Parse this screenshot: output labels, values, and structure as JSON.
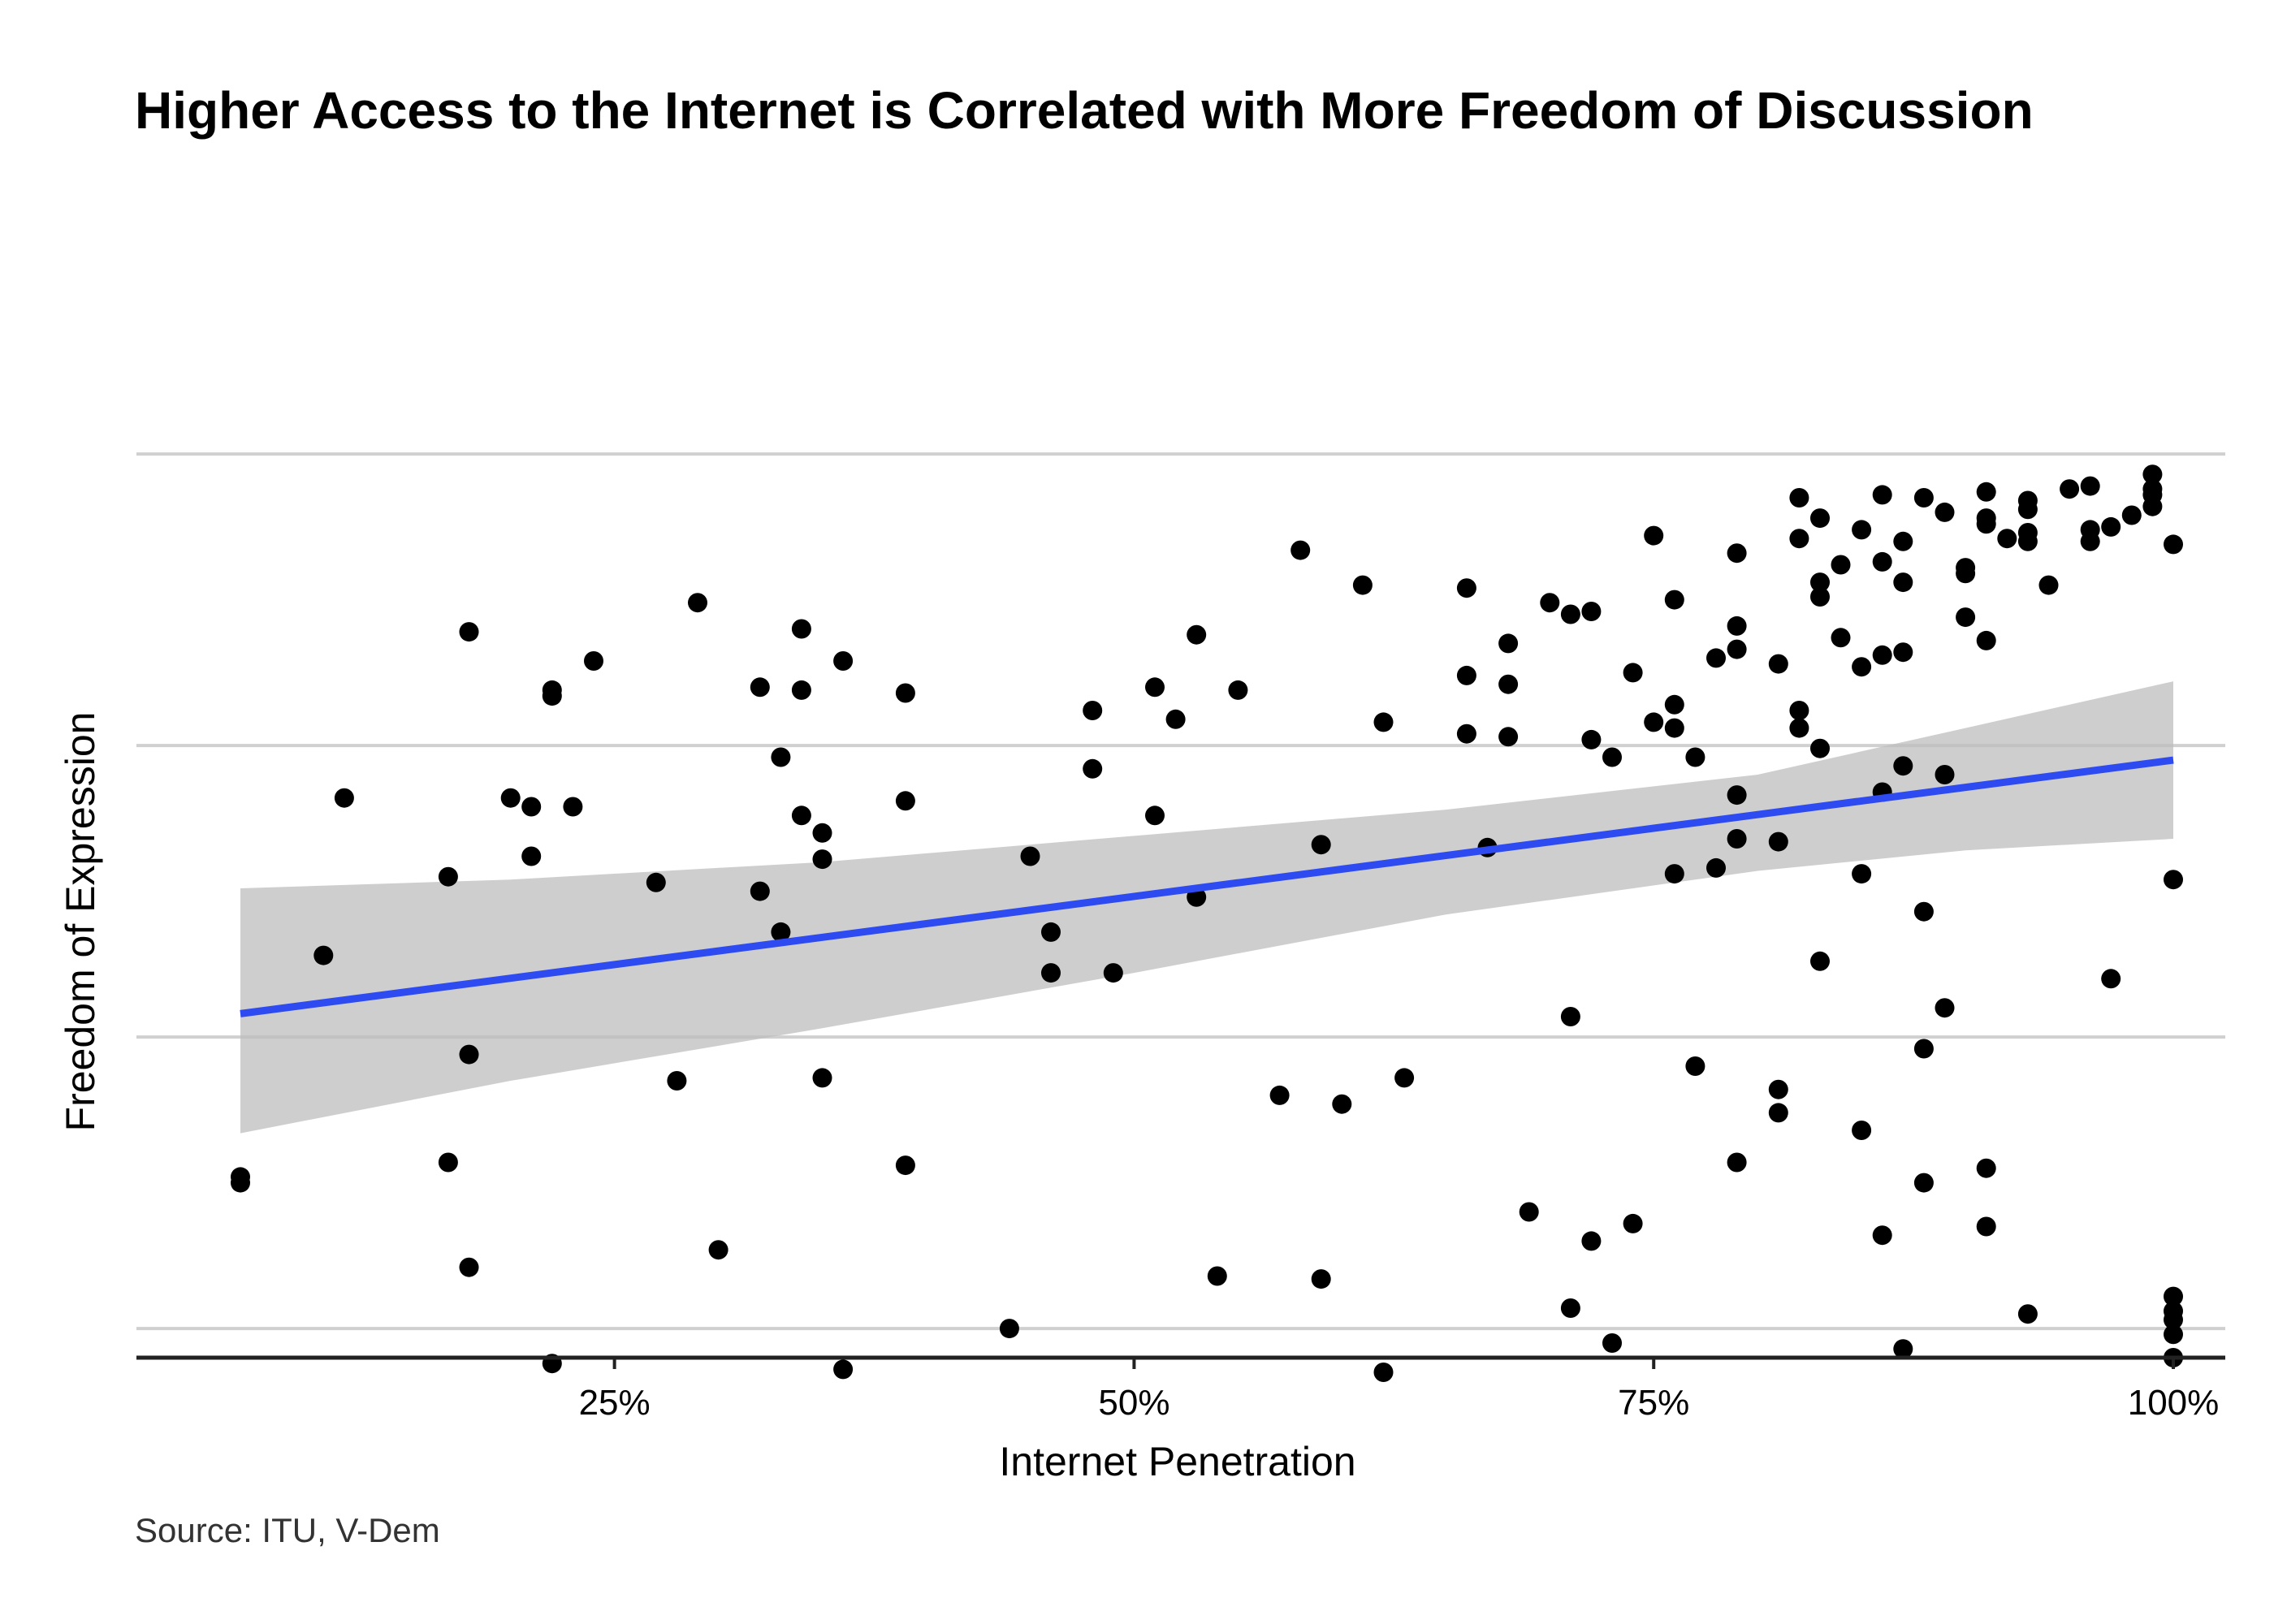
{
  "chart_data": {
    "type": "scatter",
    "title": "Higher Access to the Internet is Correlated with More Freedom of Discussion",
    "xlabel": "Internet Penetration",
    "ylabel": "Freedom of Expression",
    "caption": "Source: ITU, V-Dem",
    "xlim": [
      0.02,
      1.025
    ],
    "ylim": [
      -0.1,
      3.9
    ],
    "x_ticks": [
      {
        "value": 0.25,
        "label": "25%"
      },
      {
        "value": 0.5,
        "label": "50%"
      },
      {
        "value": 0.75,
        "label": "75%"
      },
      {
        "value": 1.0,
        "label": "100%"
      }
    ],
    "y_gridlines": [
      0,
      1,
      2,
      3,
      4
    ],
    "y_tick_labels_shown": false,
    "grid": {
      "horizontal": true,
      "vertical": false
    },
    "colors": {
      "points": "#000000",
      "trend": "#2E4BF2",
      "band": "#BEBEBE",
      "grid": "#D0D0D0",
      "axis": "#222222"
    },
    "trend": {
      "x": [
        0.07,
        1.0
      ],
      "y": [
        1.08,
        1.95
      ]
    },
    "band": {
      "x": [
        0.07,
        0.2,
        0.35,
        0.5,
        0.65,
        0.8,
        0.9,
        1.0
      ],
      "lower": [
        0.67,
        0.85,
        1.03,
        1.22,
        1.42,
        1.57,
        1.64,
        1.68
      ],
      "upper": [
        1.51,
        1.54,
        1.6,
        1.69,
        1.78,
        1.9,
        2.06,
        2.22
      ]
    },
    "points": [
      [
        0.07,
        0.52
      ],
      [
        0.07,
        0.5
      ],
      [
        0.11,
        1.28
      ],
      [
        0.12,
        1.82
      ],
      [
        0.17,
        1.55
      ],
      [
        0.17,
        0.57
      ],
      [
        0.18,
        2.39
      ],
      [
        0.18,
        0.94
      ],
      [
        0.18,
        0.21
      ],
      [
        0.2,
        1.82
      ],
      [
        0.21,
        1.79
      ],
      [
        0.21,
        1.62
      ],
      [
        0.22,
        2.19
      ],
      [
        0.22,
        2.17
      ],
      [
        0.22,
        -0.12
      ],
      [
        0.23,
        1.79
      ],
      [
        0.24,
        2.29
      ],
      [
        0.27,
        1.53
      ],
      [
        0.28,
        0.85
      ],
      [
        0.29,
        2.49
      ],
      [
        0.3,
        0.27
      ],
      [
        0.32,
        2.2
      ],
      [
        0.32,
        1.5
      ],
      [
        0.33,
        1.96
      ],
      [
        0.33,
        1.36
      ],
      [
        0.34,
        2.4
      ],
      [
        0.34,
        2.19
      ],
      [
        0.34,
        1.76
      ],
      [
        0.35,
        1.7
      ],
      [
        0.35,
        1.61
      ],
      [
        0.35,
        0.86
      ],
      [
        0.36,
        2.29
      ],
      [
        0.36,
        -0.14
      ],
      [
        0.39,
        2.18
      ],
      [
        0.39,
        1.81
      ],
      [
        0.39,
        0.56
      ],
      [
        0.44,
        0.0
      ],
      [
        0.45,
        1.62
      ],
      [
        0.46,
        1.36
      ],
      [
        0.46,
        1.22
      ],
      [
        0.48,
        2.12
      ],
      [
        0.48,
        1.92
      ],
      [
        0.49,
        1.22
      ],
      [
        0.51,
        2.2
      ],
      [
        0.51,
        1.76
      ],
      [
        0.52,
        2.09
      ],
      [
        0.53,
        2.38
      ],
      [
        0.53,
        1.48
      ],
      [
        0.54,
        0.18
      ],
      [
        0.55,
        2.19
      ],
      [
        0.57,
        0.8
      ],
      [
        0.58,
        2.67
      ],
      [
        0.59,
        0.17
      ],
      [
        0.59,
        1.66
      ],
      [
        0.6,
        0.77
      ],
      [
        0.61,
        2.55
      ],
      [
        0.62,
        2.08
      ],
      [
        0.62,
        -0.15
      ],
      [
        0.63,
        0.86
      ],
      [
        0.66,
        2.54
      ],
      [
        0.66,
        2.24
      ],
      [
        0.66,
        2.04
      ],
      [
        0.67,
        1.65
      ],
      [
        0.68,
        2.35
      ],
      [
        0.68,
        2.21
      ],
      [
        0.68,
        2.03
      ],
      [
        0.69,
        0.4
      ],
      [
        0.7,
        2.49
      ],
      [
        0.71,
        2.45
      ],
      [
        0.71,
        1.07
      ],
      [
        0.71,
        0.07
      ],
      [
        0.72,
        2.46
      ],
      [
        0.72,
        2.02
      ],
      [
        0.72,
        0.3
      ],
      [
        0.73,
        1.96
      ],
      [
        0.73,
        -0.05
      ],
      [
        0.74,
        2.25
      ],
      [
        0.74,
        0.36
      ],
      [
        0.75,
        2.72
      ],
      [
        0.75,
        2.08
      ],
      [
        0.76,
        2.5
      ],
      [
        0.76,
        2.14
      ],
      [
        0.76,
        2.06
      ],
      [
        0.76,
        1.56
      ],
      [
        0.77,
        1.96
      ],
      [
        0.77,
        0.9
      ],
      [
        0.78,
        2.3
      ],
      [
        0.78,
        1.58
      ],
      [
        0.79,
        2.66
      ],
      [
        0.79,
        2.41
      ],
      [
        0.79,
        2.33
      ],
      [
        0.79,
        1.83
      ],
      [
        0.79,
        1.68
      ],
      [
        0.79,
        0.57
      ],
      [
        0.81,
        2.28
      ],
      [
        0.81,
        1.67
      ],
      [
        0.81,
        0.74
      ],
      [
        0.81,
        0.82
      ],
      [
        0.82,
        2.85
      ],
      [
        0.82,
        2.71
      ],
      [
        0.82,
        2.12
      ],
      [
        0.82,
        2.06
      ],
      [
        0.83,
        2.78
      ],
      [
        0.83,
        2.56
      ],
      [
        0.83,
        2.51
      ],
      [
        0.83,
        1.99
      ],
      [
        0.83,
        1.26
      ],
      [
        0.84,
        2.62
      ],
      [
        0.84,
        2.37
      ],
      [
        0.85,
        2.74
      ],
      [
        0.85,
        2.27
      ],
      [
        0.85,
        1.56
      ],
      [
        0.85,
        0.68
      ],
      [
        0.86,
        2.86
      ],
      [
        0.86,
        2.63
      ],
      [
        0.86,
        2.31
      ],
      [
        0.86,
        1.84
      ],
      [
        0.86,
        0.32
      ],
      [
        0.87,
        2.7
      ],
      [
        0.87,
        2.56
      ],
      [
        0.87,
        2.32
      ],
      [
        0.87,
        1.93
      ],
      [
        0.87,
        -0.07
      ],
      [
        0.88,
        2.85
      ],
      [
        0.88,
        1.43
      ],
      [
        0.88,
        0.96
      ],
      [
        0.88,
        0.5
      ],
      [
        0.89,
        2.8
      ],
      [
        0.89,
        1.9
      ],
      [
        0.89,
        1.1
      ],
      [
        0.9,
        2.61
      ],
      [
        0.9,
        2.59
      ],
      [
        0.9,
        2.44
      ],
      [
        0.91,
        2.87
      ],
      [
        0.91,
        2.78
      ],
      [
        0.91,
        2.76
      ],
      [
        0.91,
        2.36
      ],
      [
        0.91,
        0.55
      ],
      [
        0.91,
        0.35
      ],
      [
        0.92,
        2.71
      ],
      [
        0.93,
        2.84
      ],
      [
        0.93,
        2.81
      ],
      [
        0.93,
        2.73
      ],
      [
        0.93,
        2.7
      ],
      [
        0.93,
        0.05
      ],
      [
        0.94,
        2.55
      ],
      [
        0.95,
        2.88
      ],
      [
        0.96,
        2.89
      ],
      [
        0.96,
        2.74
      ],
      [
        0.96,
        2.7
      ],
      [
        0.97,
        2.75
      ],
      [
        0.97,
        1.2
      ],
      [
        0.98,
        2.79
      ],
      [
        0.99,
        2.93
      ],
      [
        0.99,
        2.88
      ],
      [
        0.99,
        2.86
      ],
      [
        0.99,
        2.82
      ],
      [
        1.0,
        2.69
      ],
      [
        1.0,
        1.54
      ],
      [
        1.0,
        0.11
      ],
      [
        1.0,
        0.06
      ],
      [
        1.0,
        0.03
      ],
      [
        1.0,
        -0.02
      ],
      [
        1.0,
        -0.1
      ]
    ]
  }
}
